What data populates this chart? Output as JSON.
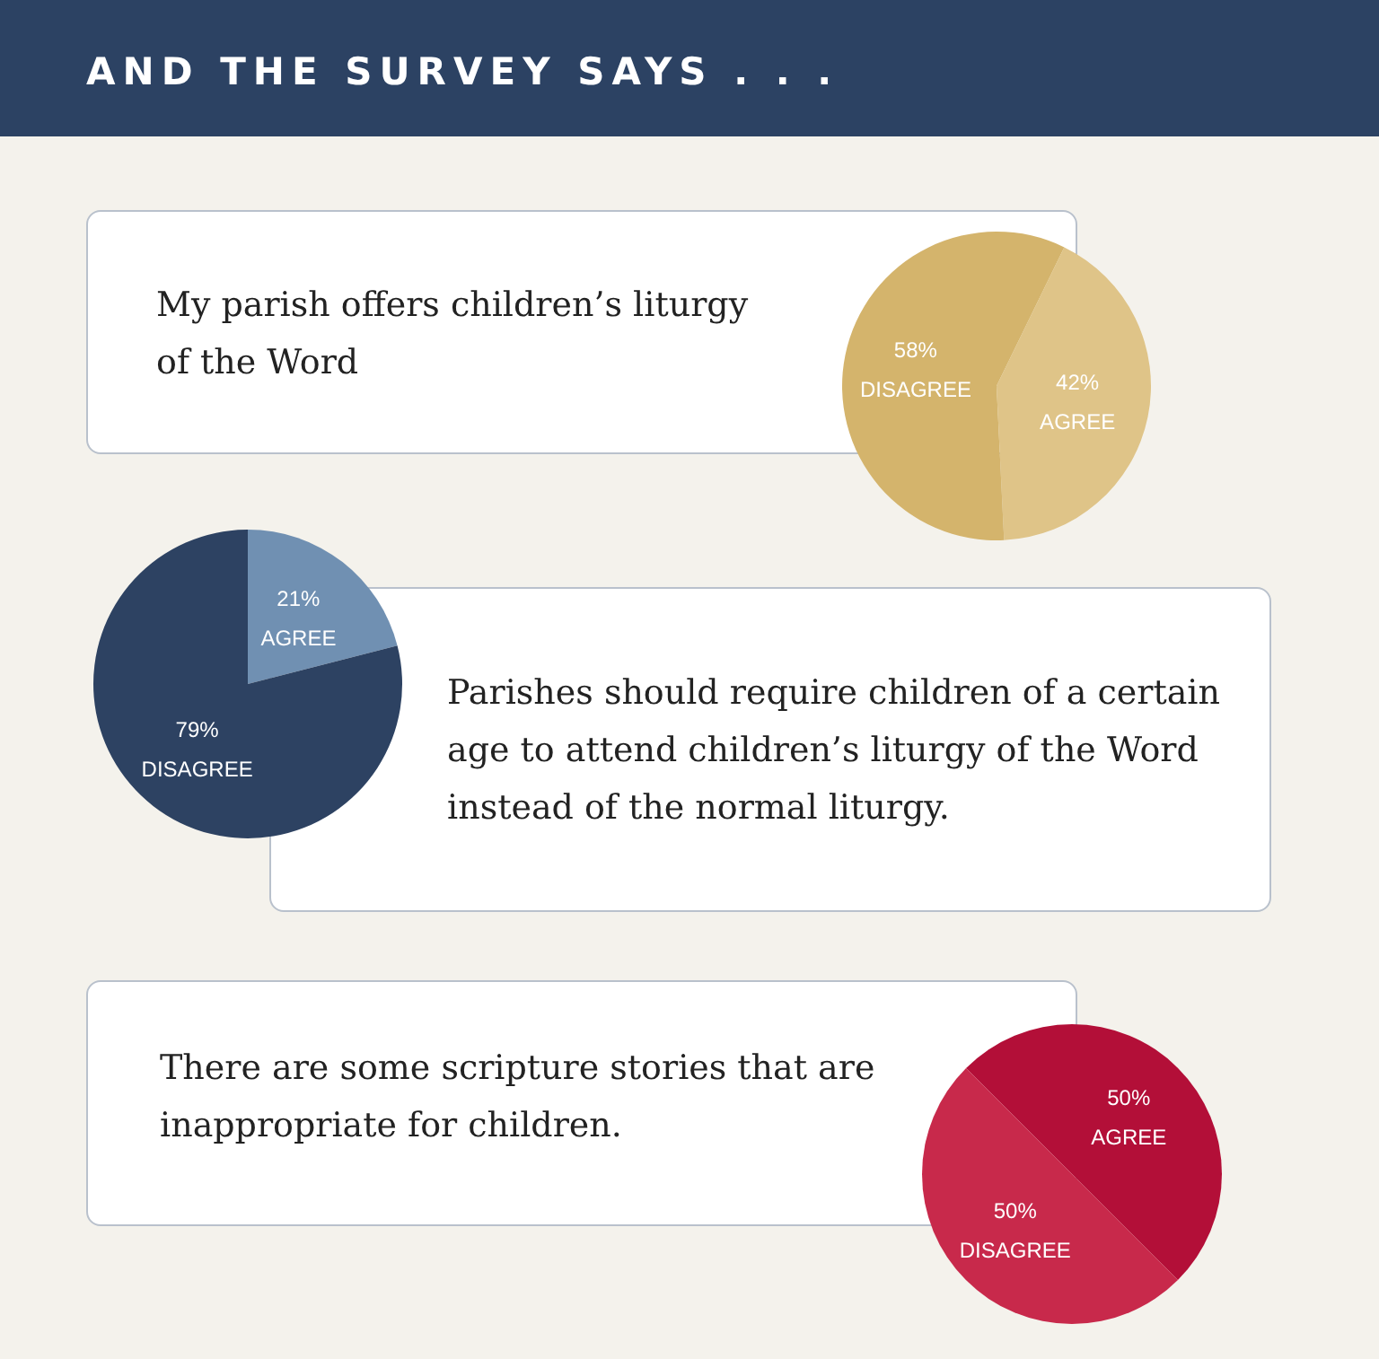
{
  "chart_data": [
    {
      "type": "other",
      "title": "AND THE SURVEY SAYS . . ."
    },
    {
      "type": "pie",
      "title": "My parish offers children’s liturgy of the Word",
      "categories": [
        "AGREE",
        "DISAGREE"
      ],
      "values": [
        42,
        58
      ],
      "colors": [
        "#dfc488",
        "#d4b46c"
      ],
      "value_labels": [
        "42%",
        "58%"
      ]
    },
    {
      "type": "pie",
      "title": "Parishes should require children of a certain age to attend children’s liturgy of the Word instead of the normal liturgy.",
      "categories": [
        "AGREE",
        "DISAGREE"
      ],
      "values": [
        21,
        79
      ],
      "colors": [
        "#7090b2",
        "#2d4262"
      ],
      "value_labels": [
        "21%",
        "79%"
      ]
    },
    {
      "type": "pie",
      "title": "There are some scripture stories that are inappropriate for children.",
      "categories": [
        "AGREE",
        "DISAGREE"
      ],
      "values": [
        50,
        50
      ],
      "colors": [
        "#b30f38",
        "#c8294b"
      ],
      "value_labels": [
        "50%",
        "50%"
      ]
    }
  ]
}
